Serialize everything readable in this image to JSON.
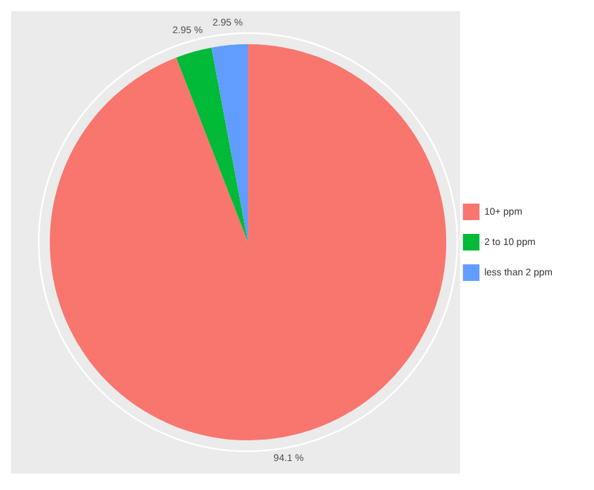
{
  "chart_data": {
    "type": "pie",
    "categories": [
      "10+ ppm",
      "2 to 10 ppm",
      "less than 2 ppm"
    ],
    "values": [
      94.1,
      2.95,
      2.95
    ],
    "colors": [
      "#f8766d",
      "#00ba38",
      "#619cff"
    ],
    "value_labels": [
      "94.1 %",
      "2.95 %",
      "2.95 %"
    ],
    "legend": "right"
  }
}
